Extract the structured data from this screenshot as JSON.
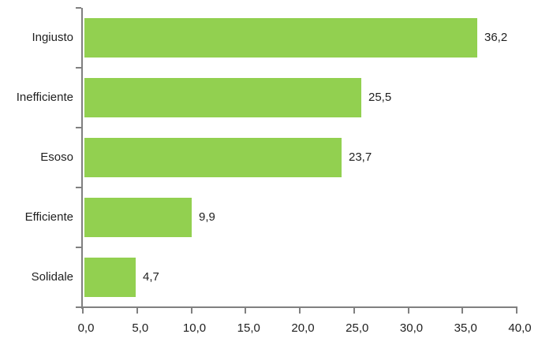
{
  "chart_data": {
    "type": "bar",
    "orientation": "horizontal",
    "title": "",
    "categories": [
      "Ingiusto",
      "Inefficiente",
      "Esoso",
      "Efficiente",
      "Solidale"
    ],
    "values": [
      36.2,
      25.5,
      23.7,
      9.9,
      4.7
    ],
    "value_labels": [
      "36,2",
      "25,5",
      "23,7",
      "9,9",
      "4,7"
    ],
    "x_tick_values": [
      0,
      5,
      10,
      15,
      20,
      25,
      30,
      35,
      40
    ],
    "x_tick_labels": [
      "0,0",
      "5,0",
      "10,0",
      "15,0",
      "20,0",
      "25,0",
      "30,0",
      "35,0",
      "40,0"
    ],
    "xlim": [
      0,
      40
    ],
    "grid": false,
    "legend": false,
    "bar_color": "#92d050",
    "axis_color": "#808080",
    "text_color": "#1f1f1f",
    "background_color": "#ffffff"
  }
}
